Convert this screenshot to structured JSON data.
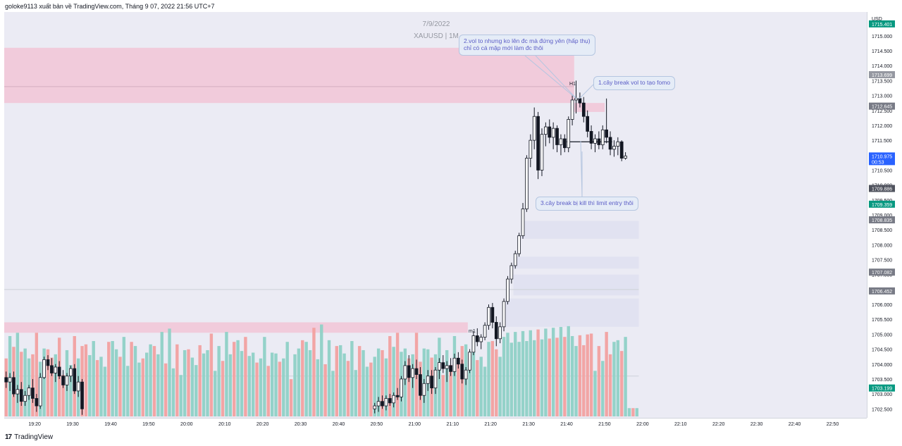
{
  "header": {
    "publish_line": "goloke9113 xuất bản về TradingView.com, Tháng 9 07, 2022 21:56 UTC+7"
  },
  "watermark": {
    "date": "7/9/2022",
    "symbol": "XAUUSD | 1M"
  },
  "footer": {
    "brand": "TradingView",
    "logo_glyph": "17"
  },
  "annotations": {
    "note_2": "2.vol to nhưng ko lên đc mà đứng yên (hấp thụ) chỉ có cá mập mới làm đc thôi",
    "note_1": "1.cây break vol to tạo fomo",
    "note_3": "3.cây break bị kill thì limit entry thôi",
    "label_h1": "H1",
    "label_m1": "m1"
  },
  "price_labels": [
    {
      "text": "1715.401",
      "price": 1715.401,
      "color": "#089981"
    },
    {
      "text": "1713.699",
      "price": 1713.699,
      "color": "#9598a1"
    },
    {
      "text": "1712.645",
      "price": 1712.645,
      "color": "#787b86"
    },
    {
      "text": "1710.975",
      "sub": "00:53",
      "price": 1710.975,
      "color": "#2962ff"
    },
    {
      "text": "1709.886",
      "price": 1709.886,
      "color": "#50535e"
    },
    {
      "text": "1709.359",
      "price": 1709.359,
      "color": "#089981"
    },
    {
      "text": "1708.835",
      "price": 1708.835,
      "color": "#787b86"
    },
    {
      "text": "1707.082",
      "price": 1707.082,
      "color": "#787b86"
    },
    {
      "text": "1706.452",
      "price": 1706.452,
      "color": "#787b86"
    },
    {
      "text": "1703.199",
      "price": 1703.199,
      "color": "#089981"
    }
  ],
  "zones": [
    {
      "kind": "supply",
      "price_top": 1714.6,
      "price_bottom": 1712.75,
      "x_start": "19:12",
      "x_end": "21:42",
      "color": "#f2c6d6"
    },
    {
      "kind": "supply",
      "price_top": 1712.75,
      "price_bottom": 1712.45,
      "x_start": "21:42",
      "x_end": "21:50",
      "color": "#f2c6d6"
    },
    {
      "kind": "demand",
      "price_top": 1705.4,
      "price_bottom": 1705.05,
      "x_start": "19:12",
      "x_end": "21:14",
      "color": "#f2c6d6"
    },
    {
      "kind": "imbalance",
      "price_top": 1708.8,
      "price_bottom": 1708.2,
      "x_start": "21:28",
      "x_end": "21:59",
      "color": "#dfe1f0"
    },
    {
      "kind": "imbalance",
      "price_top": 1707.6,
      "price_bottom": 1707.2,
      "x_start": "21:26",
      "x_end": "21:59",
      "color": "#dfe1f0"
    },
    {
      "kind": "imbalance",
      "price_top": 1707.0,
      "price_bottom": 1706.3,
      "x_start": "21:26",
      "x_end": "21:59",
      "color": "#dfe1f0"
    },
    {
      "kind": "imbalance",
      "price_top": 1706.2,
      "price_bottom": 1705.25,
      "x_start": "21:24",
      "x_end": "21:59",
      "color": "#dfe1f0"
    }
  ],
  "chart_data": {
    "type": "candlestick",
    "title": "",
    "symbol": "XAUUSD",
    "interval": "1M",
    "date": "7/9/2022",
    "currency": "USD",
    "y_axis": {
      "range": [
        1702.2,
        1715.8
      ],
      "ticks": [
        "1715.000",
        "1714.500",
        "1714.000",
        "1713.500",
        "1713.000",
        "1712.500",
        "1712.000",
        "1711.500",
        "1711.000",
        "1710.500",
        "1710.000",
        "1709.500",
        "1709.000",
        "1708.500",
        "1708.000",
        "1707.500",
        "1707.000",
        "1706.500",
        "1706.000",
        "1705.500",
        "1705.000",
        "1704.500",
        "1704.000",
        "1703.500",
        "1703.000",
        "1702.500"
      ]
    },
    "x_axis": {
      "range": [
        "19:12",
        "22:59"
      ],
      "ticks": [
        "19:20",
        "19:30",
        "19:40",
        "19:50",
        "20:00",
        "20:10",
        "20:20",
        "20:30",
        "20:40",
        "20:50",
        "21:00",
        "21:10",
        "21:20",
        "21:30",
        "21:40",
        "21:50",
        "22:00",
        "22:10",
        "22:20",
        "22:30",
        "22:40",
        "22:50"
      ]
    },
    "horizontal_lines": [
      {
        "price": 1713.3,
        "x_start": "19:12",
        "x_end": "21:42",
        "color": "#d9b3c4"
      },
      {
        "price": 1711.45,
        "x_start": "21:40",
        "x_end": "21:52",
        "color": "#131722"
      },
      {
        "price": 1706.5,
        "x_start": "19:12",
        "x_end": "21:59",
        "color": "#d1d4dc"
      },
      {
        "price": 1703.6,
        "x_start": "19:12",
        "x_end": "21:59",
        "color": "#d1d4dc"
      }
    ],
    "colors": {
      "up": "#26a69a",
      "down": "#ef5350",
      "candle_body_up": "#ffffff",
      "candle_body_down": "#131722"
    },
    "candles": [
      {
        "t": "19:12",
        "o": 1703.55,
        "h": 1703.75,
        "l": 1703.2,
        "c": 1703.4
      },
      {
        "t": "19:13",
        "o": 1703.4,
        "h": 1703.7,
        "l": 1703.1,
        "c": 1703.55
      },
      {
        "t": "19:14",
        "o": 1703.55,
        "h": 1703.75,
        "l": 1702.9,
        "c": 1703.0
      },
      {
        "t": "19:15",
        "o": 1703.0,
        "h": 1703.3,
        "l": 1702.7,
        "c": 1703.15
      },
      {
        "t": "19:16",
        "o": 1703.15,
        "h": 1703.4,
        "l": 1702.6,
        "c": 1702.75
      },
      {
        "t": "19:17",
        "o": 1702.75,
        "h": 1703.1,
        "l": 1702.6,
        "c": 1702.95
      },
      {
        "t": "19:18",
        "o": 1702.95,
        "h": 1703.3,
        "l": 1702.8,
        "c": 1703.2
      },
      {
        "t": "19:19",
        "o": 1703.2,
        "h": 1703.5,
        "l": 1702.7,
        "c": 1702.85
      },
      {
        "t": "19:20",
        "o": 1702.85,
        "h": 1703.0,
        "l": 1702.4,
        "c": 1702.6
      },
      {
        "t": "19:21",
        "o": 1702.6,
        "h": 1703.7,
        "l": 1702.5,
        "c": 1703.55
      },
      {
        "t": "19:22",
        "o": 1703.55,
        "h": 1704.25,
        "l": 1703.5,
        "c": 1704.15
      },
      {
        "t": "19:23",
        "o": 1704.15,
        "h": 1704.3,
        "l": 1703.8,
        "c": 1703.95
      },
      {
        "t": "19:24",
        "o": 1703.95,
        "h": 1704.2,
        "l": 1703.6,
        "c": 1703.7
      },
      {
        "t": "19:25",
        "o": 1703.7,
        "h": 1704.0,
        "l": 1703.4,
        "c": 1703.9
      },
      {
        "t": "19:26",
        "o": 1703.9,
        "h": 1704.1,
        "l": 1703.5,
        "c": 1703.6
      },
      {
        "t": "19:27",
        "o": 1703.6,
        "h": 1703.8,
        "l": 1703.2,
        "c": 1703.3
      },
      {
        "t": "19:28",
        "o": 1703.3,
        "h": 1703.7,
        "l": 1703.1,
        "c": 1703.6
      },
      {
        "t": "19:29",
        "o": 1703.6,
        "h": 1703.95,
        "l": 1703.4,
        "c": 1703.85
      },
      {
        "t": "19:30",
        "o": 1703.85,
        "h": 1704.0,
        "l": 1703.0,
        "c": 1703.1
      },
      {
        "t": "19:31",
        "o": 1703.1,
        "h": 1703.6,
        "l": 1702.9,
        "c": 1703.4
      },
      {
        "t": "19:32",
        "o": 1703.4,
        "h": 1703.5,
        "l": 1702.3,
        "c": 1702.5
      }
    ],
    "trailing_candles": [
      {
        "t": "20:49",
        "o": 1702.5,
        "h": 1702.7,
        "l": 1702.35,
        "c": 1702.6
      },
      {
        "t": "20:50",
        "o": 1702.6,
        "h": 1702.9,
        "l": 1702.4,
        "c": 1702.75
      },
      {
        "t": "20:51",
        "o": 1702.75,
        "h": 1702.95,
        "l": 1702.5,
        "c": 1702.6
      },
      {
        "t": "20:52",
        "o": 1702.6,
        "h": 1702.95,
        "l": 1702.45,
        "c": 1702.85
      },
      {
        "t": "20:53",
        "o": 1702.85,
        "h": 1703.0,
        "l": 1702.6,
        "c": 1702.7
      },
      {
        "t": "20:54",
        "o": 1702.7,
        "h": 1703.05,
        "l": 1702.55,
        "c": 1702.95
      },
      {
        "t": "20:55",
        "o": 1702.95,
        "h": 1703.2,
        "l": 1702.8,
        "c": 1702.9
      },
      {
        "t": "20:56",
        "o": 1702.9,
        "h": 1703.6,
        "l": 1702.75,
        "c": 1703.5
      },
      {
        "t": "20:57",
        "o": 1703.5,
        "h": 1704.1,
        "l": 1703.3,
        "c": 1703.95
      },
      {
        "t": "20:58",
        "o": 1703.95,
        "h": 1704.3,
        "l": 1703.4,
        "c": 1703.55
      },
      {
        "t": "20:59",
        "o": 1703.55,
        "h": 1704.0,
        "l": 1703.2,
        "c": 1703.85
      },
      {
        "t": "21:00",
        "o": 1703.85,
        "h": 1704.15,
        "l": 1703.5,
        "c": 1703.65
      },
      {
        "t": "21:01",
        "o": 1703.65,
        "h": 1703.9,
        "l": 1702.8,
        "c": 1702.95
      },
      {
        "t": "21:02",
        "o": 1702.95,
        "h": 1703.5,
        "l": 1702.7,
        "c": 1703.35
      },
      {
        "t": "21:03",
        "o": 1703.35,
        "h": 1703.8,
        "l": 1703.1,
        "c": 1703.6
      },
      {
        "t": "21:04",
        "o": 1703.6,
        "h": 1703.8,
        "l": 1703.0,
        "c": 1703.2
      },
      {
        "t": "21:05",
        "o": 1703.2,
        "h": 1703.9,
        "l": 1703.0,
        "c": 1703.8
      },
      {
        "t": "21:06",
        "o": 1703.8,
        "h": 1704.2,
        "l": 1703.5,
        "c": 1704.05
      },
      {
        "t": "21:07",
        "o": 1704.05,
        "h": 1704.3,
        "l": 1703.7,
        "c": 1703.85
      },
      {
        "t": "21:08",
        "o": 1703.85,
        "h": 1704.1,
        "l": 1703.4,
        "c": 1703.95
      },
      {
        "t": "21:09",
        "o": 1703.95,
        "h": 1704.2,
        "l": 1703.6,
        "c": 1703.75
      },
      {
        "t": "21:10",
        "o": 1703.75,
        "h": 1704.35,
        "l": 1703.6,
        "c": 1704.2
      },
      {
        "t": "21:11",
        "o": 1704.2,
        "h": 1704.4,
        "l": 1703.85,
        "c": 1704.0
      },
      {
        "t": "21:12",
        "o": 1704.0,
        "h": 1704.15,
        "l": 1703.35,
        "c": 1703.5
      },
      {
        "t": "21:13",
        "o": 1703.5,
        "h": 1703.9,
        "l": 1703.3,
        "c": 1703.8
      },
      {
        "t": "21:14",
        "o": 1703.8,
        "h": 1704.5,
        "l": 1703.7,
        "c": 1704.4
      },
      {
        "t": "21:15",
        "o": 1704.4,
        "h": 1705.1,
        "l": 1704.3,
        "c": 1704.95
      },
      {
        "t": "21:16",
        "o": 1704.95,
        "h": 1705.2,
        "l": 1704.6,
        "c": 1704.75
      },
      {
        "t": "21:17",
        "o": 1704.75,
        "h": 1705.0,
        "l": 1704.5,
        "c": 1704.9
      },
      {
        "t": "21:18",
        "o": 1704.9,
        "h": 1705.4,
        "l": 1704.8,
        "c": 1705.3
      },
      {
        "t": "21:19",
        "o": 1705.3,
        "h": 1706.0,
        "l": 1705.15,
        "c": 1705.9
      },
      {
        "t": "21:20",
        "o": 1705.9,
        "h": 1706.05,
        "l": 1705.2,
        "c": 1705.4
      },
      {
        "t": "21:21",
        "o": 1705.4,
        "h": 1705.6,
        "l": 1704.6,
        "c": 1704.85
      },
      {
        "t": "21:22",
        "o": 1704.85,
        "h": 1705.4,
        "l": 1704.7,
        "c": 1705.25
      },
      {
        "t": "21:23",
        "o": 1705.25,
        "h": 1706.2,
        "l": 1705.1,
        "c": 1706.1
      },
      {
        "t": "21:24",
        "o": 1706.1,
        "h": 1706.95,
        "l": 1706.0,
        "c": 1706.85
      },
      {
        "t": "21:25",
        "o": 1706.85,
        "h": 1707.4,
        "l": 1706.7,
        "c": 1707.3
      },
      {
        "t": "21:26",
        "o": 1707.3,
        "h": 1707.8,
        "l": 1707.2,
        "c": 1707.7
      },
      {
        "t": "21:27",
        "o": 1707.7,
        "h": 1708.4,
        "l": 1707.6,
        "c": 1708.3
      },
      {
        "t": "21:28",
        "o": 1708.3,
        "h": 1709.4,
        "l": 1708.2,
        "c": 1709.2
      },
      {
        "t": "21:29",
        "o": 1709.2,
        "h": 1711.0,
        "l": 1709.1,
        "c": 1710.9
      },
      {
        "t": "21:30",
        "o": 1710.9,
        "h": 1711.7,
        "l": 1710.6,
        "c": 1711.5
      },
      {
        "t": "21:31",
        "o": 1711.5,
        "h": 1712.6,
        "l": 1711.2,
        "c": 1712.3
      },
      {
        "t": "21:32",
        "o": 1712.3,
        "h": 1712.45,
        "l": 1710.2,
        "c": 1710.5
      },
      {
        "t": "21:33",
        "o": 1710.5,
        "h": 1711.9,
        "l": 1710.3,
        "c": 1711.7
      },
      {
        "t": "21:34",
        "o": 1711.7,
        "h": 1712.1,
        "l": 1711.3,
        "c": 1711.95
      },
      {
        "t": "21:35",
        "o": 1711.95,
        "h": 1712.2,
        "l": 1711.4,
        "c": 1711.6
      },
      {
        "t": "21:36",
        "o": 1711.6,
        "h": 1712.1,
        "l": 1711.2,
        "c": 1711.9
      },
      {
        "t": "21:37",
        "o": 1711.9,
        "h": 1712.0,
        "l": 1711.1,
        "c": 1711.35
      },
      {
        "t": "21:38",
        "o": 1711.35,
        "h": 1711.7,
        "l": 1711.0,
        "c": 1711.55
      },
      {
        "t": "21:39",
        "o": 1711.55,
        "h": 1711.7,
        "l": 1711.1,
        "c": 1711.25
      },
      {
        "t": "21:40",
        "o": 1711.25,
        "h": 1712.3,
        "l": 1711.1,
        "c": 1712.2
      },
      {
        "t": "21:41",
        "o": 1712.2,
        "h": 1713.0,
        "l": 1712.0,
        "c": 1712.85
      },
      {
        "t": "21:42",
        "o": 1712.85,
        "h": 1713.5,
        "l": 1712.4,
        "c": 1712.9
      },
      {
        "t": "21:43",
        "o": 1712.9,
        "h": 1713.1,
        "l": 1712.6,
        "c": 1712.75
      },
      {
        "t": "21:44",
        "o": 1712.75,
        "h": 1712.95,
        "l": 1712.1,
        "c": 1712.3
      },
      {
        "t": "21:45",
        "o": 1712.3,
        "h": 1712.5,
        "l": 1711.6,
        "c": 1711.8
      },
      {
        "t": "21:46",
        "o": 1711.8,
        "h": 1712.0,
        "l": 1711.2,
        "c": 1711.4
      },
      {
        "t": "21:47",
        "o": 1711.4,
        "h": 1711.7,
        "l": 1711.1,
        "c": 1711.55
      },
      {
        "t": "21:48",
        "o": 1711.55,
        "h": 1711.8,
        "l": 1711.2,
        "c": 1711.35
      },
      {
        "t": "21:49",
        "o": 1711.35,
        "h": 1712.0,
        "l": 1711.2,
        "c": 1711.85
      },
      {
        "t": "21:50",
        "o": 1711.85,
        "h": 1712.9,
        "l": 1711.4,
        "c": 1711.6
      },
      {
        "t": "21:51",
        "o": 1711.6,
        "h": 1711.8,
        "l": 1711.0,
        "c": 1711.2
      },
      {
        "t": "21:52",
        "o": 1711.2,
        "h": 1711.5,
        "l": 1710.95,
        "c": 1711.3
      },
      {
        "t": "21:53",
        "o": 1711.3,
        "h": 1711.6,
        "l": 1711.0,
        "c": 1711.45
      },
      {
        "t": "21:54",
        "o": 1711.45,
        "h": 1711.5,
        "l": 1710.8,
        "c": 1710.9
      },
      {
        "t": "21:55",
        "o": 1710.9,
        "h": 1711.1,
        "l": 1710.85,
        "c": 1710.975
      }
    ],
    "volume_bars_note": "volume histogram at bottom of price pane, colored by bar direction",
    "volume_max": 110
  }
}
